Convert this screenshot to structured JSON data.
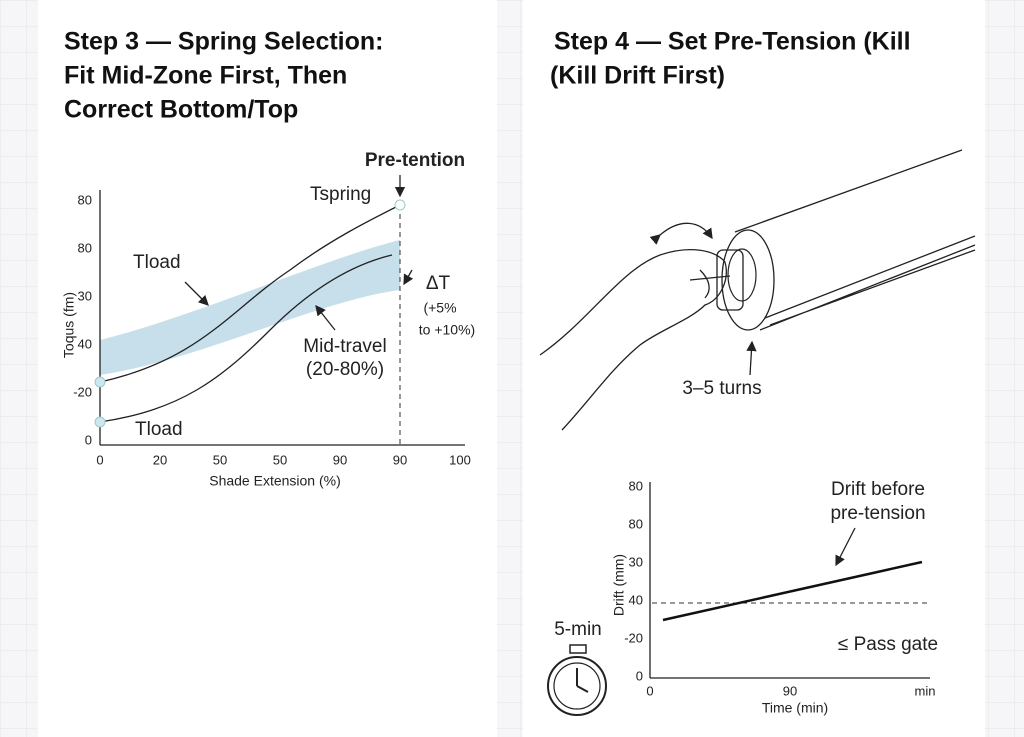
{
  "left": {
    "title_lines": [
      "Step 3 — Spring Selection:",
      "Fit Mid-Zone First, Then",
      "Correct Bottom/Top"
    ],
    "annotations": {
      "pretention": "Pre-tention",
      "tspring": "Tspring",
      "tload_top": "Tload",
      "tload_bottom": "Tload",
      "delta": [
        "ΔT",
        "(+5%",
        "to +10%)"
      ],
      "mid": [
        "Mid-travel",
        "(20-80%)"
      ]
    },
    "y_axis_label": "Toqus (fm)",
    "yticks": [
      "80",
      "80",
      "30",
      "40",
      "-20",
      "0"
    ],
    "xticks": [
      "0",
      "20",
      "50",
      "50",
      "90",
      "90",
      "100"
    ],
    "x_axis_label": "Shade Extension (%)"
  },
  "right": {
    "title_lines": [
      "Step 4 — Set Pre-Tension (Kill",
      "(Kill Drift First)"
    ],
    "turns": "3–5 turns",
    "timer": "5-min",
    "chart": {
      "yticks": [
        "80",
        "80",
        "30",
        "40",
        "-20",
        "0"
      ],
      "xticks": [
        "0",
        "90",
        "min"
      ],
      "x_axis_label": "Time (min)",
      "y_axis_label": "Drift (mm)",
      "drift_note": [
        "Drift before",
        "pre-tension"
      ],
      "pass": "≤ Pass gate"
    }
  }
}
